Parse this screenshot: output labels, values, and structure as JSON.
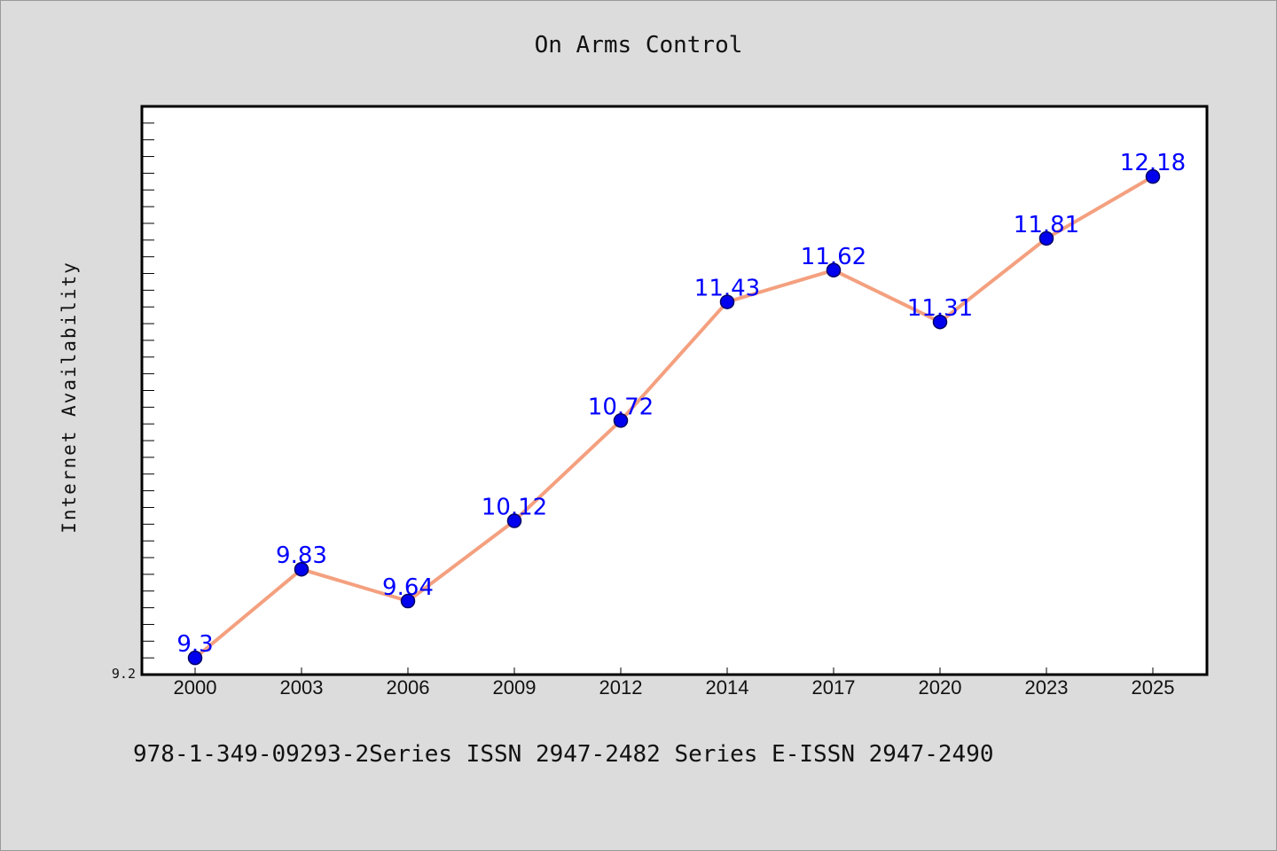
{
  "title": "On Arms Control",
  "footer": "978-1-349-09293-2Series ISSN 2947-2482 Series E-ISSN 2947-2490",
  "colors": {
    "background": "#dcdcdc",
    "plot_background": "#ffffff",
    "line": "#f4a07f",
    "marker_fill": "#0000ee",
    "marker_edge": "#000066",
    "data_label": "#0000ff"
  },
  "chart_data": {
    "type": "line",
    "title": "On Arms Control",
    "xlabel": "",
    "ylabel": "Internet Availability",
    "categories": [
      "2000",
      "2003",
      "2006",
      "2009",
      "2012",
      "2014",
      "2017",
      "2020",
      "2023",
      "2025"
    ],
    "series": [
      {
        "values": [
          9.3,
          9.83,
          9.64,
          10.12,
          10.72,
          11.43,
          11.62,
          11.31,
          11.81,
          12.18
        ]
      }
    ],
    "data_labels": [
      "9.3",
      "9.83",
      "9.64",
      "10.12",
      "10.72",
      "11.43",
      "11.62",
      "11.31",
      "11.81",
      "12.18"
    ],
    "ylim": [
      9.2,
      12.6
    ],
    "y_tick_labels": [
      "9.2"
    ],
    "grid": false,
    "legend": "none",
    "marker": "circle"
  }
}
